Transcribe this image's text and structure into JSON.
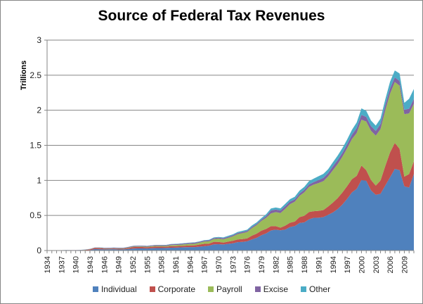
{
  "chart_data": {
    "type": "area",
    "stacked": true,
    "title": "Source of Federal Tax Revenues",
    "ylabel": "Trillions",
    "xlabel": "",
    "ylim": [
      0,
      3
    ],
    "yticks": [
      0,
      0.5,
      1,
      1.5,
      2,
      2.5,
      3
    ],
    "ytick_labels": [
      "0",
      "0.5",
      "1",
      "1.5",
      "2",
      "2.5",
      "3"
    ],
    "x_start": 1934,
    "x_end": 2011,
    "xtick_labels": [
      "1934",
      "1937",
      "1940",
      "1943",
      "1946",
      "1949",
      "1952",
      "1955",
      "1958",
      "1961",
      "1964",
      "1967",
      "1970",
      "1973",
      "1976",
      "1979",
      "1982",
      "1985",
      "1988",
      "1991",
      "1994",
      "1997",
      "2000",
      "2003",
      "2006",
      "2009"
    ],
    "grid": true,
    "legend": "bottom",
    "series": [
      {
        "name": "Individual",
        "color": "#4F81BD",
        "values": [
          0.0004,
          0.0005,
          0.0007,
          0.0011,
          0.0013,
          0.001,
          0.0009,
          0.0013,
          0.0033,
          0.0065,
          0.0197,
          0.0184,
          0.0161,
          0.0179,
          0.0193,
          0.0156,
          0.0158,
          0.0216,
          0.0279,
          0.0298,
          0.0295,
          0.0287,
          0.0322,
          0.0356,
          0.0347,
          0.0367,
          0.0407,
          0.0413,
          0.0456,
          0.0476,
          0.0487,
          0.0488,
          0.0554,
          0.0615,
          0.0687,
          0.0872,
          0.0904,
          0.0862,
          0.0947,
          0.1032,
          0.119,
          0.1224,
          0.1316,
          0.1576,
          0.181,
          0.2178,
          0.2441,
          0.2859,
          0.2977,
          0.2889,
          0.2984,
          0.3345,
          0.349,
          0.3926,
          0.4012,
          0.4457,
          0.4669,
          0.4678,
          0.476,
          0.5097,
          0.5431,
          0.5902,
          0.6564,
          0.7375,
          0.8286,
          0.8795,
          1.0045,
          0.9943,
          0.8583,
          0.7937,
          0.809,
          0.9272,
          1.0439,
          1.1635,
          1.1457,
          0.9153,
          0.8985,
          1.0915
        ]
      },
      {
        "name": "Corporate",
        "color": "#C0504D",
        "values": [
          0.0004,
          0.0006,
          0.0007,
          0.001,
          0.0013,
          0.0011,
          0.0012,
          0.0021,
          0.0047,
          0.0096,
          0.0148,
          0.016,
          0.0119,
          0.0086,
          0.0097,
          0.0112,
          0.0104,
          0.0141,
          0.0212,
          0.0212,
          0.0211,
          0.0179,
          0.0209,
          0.0212,
          0.0201,
          0.0173,
          0.0215,
          0.021,
          0.0205,
          0.0216,
          0.0235,
          0.0255,
          0.0301,
          0.034,
          0.0287,
          0.0367,
          0.0328,
          0.0268,
          0.0322,
          0.0362,
          0.0386,
          0.0406,
          0.0414,
          0.0549,
          0.06,
          0.0657,
          0.0646,
          0.0611,
          0.0492,
          0.037,
          0.0569,
          0.0613,
          0.0631,
          0.0839,
          0.0945,
          0.1033,
          0.0935,
          0.0981,
          0.1003,
          0.1175,
          0.1404,
          0.157,
          0.1718,
          0.1823,
          0.1887,
          0.1847,
          0.2073,
          0.1511,
          0.148,
          0.1318,
          0.1894,
          0.2783,
          0.3539,
          0.3702,
          0.3043,
          0.1382,
          0.1914,
          0.1811
        ]
      },
      {
        "name": "Payroll",
        "color": "#9BBB59",
        "values": [
          3e-05,
          3e-05,
          5e-05,
          0.0006,
          0.0016,
          0.0017,
          0.0018,
          0.0019,
          0.0025,
          0.003,
          0.0035,
          0.0035,
          0.0031,
          0.0034,
          0.0038,
          0.0038,
          0.0043,
          0.0057,
          0.0064,
          0.0068,
          0.0072,
          0.0079,
          0.0093,
          0.01,
          0.0112,
          0.0117,
          0.0147,
          0.0164,
          0.017,
          0.0198,
          0.022,
          0.0222,
          0.0255,
          0.0326,
          0.0339,
          0.039,
          0.0444,
          0.0473,
          0.0526,
          0.0631,
          0.0751,
          0.0845,
          0.0908,
          0.1065,
          0.121,
          0.1389,
          0.1578,
          0.1827,
          0.2015,
          0.209,
          0.2394,
          0.2652,
          0.2839,
          0.3033,
          0.3343,
          0.3594,
          0.38,
          0.396,
          0.4137,
          0.4283,
          0.4615,
          0.4845,
          0.5094,
          0.5394,
          0.5718,
          0.6118,
          0.6529,
          0.694,
          0.7008,
          0.713,
          0.7334,
          0.7941,
          0.8378,
          0.8696,
          0.9002,
          0.8909,
          0.8648,
          0.8188
        ]
      },
      {
        "name": "Excise",
        "color": "#8064A2",
        "values": [
          0.0014,
          0.0014,
          0.0016,
          0.0019,
          0.0019,
          0.0019,
          0.002,
          0.0026,
          0.0034,
          0.0041,
          0.0048,
          0.0063,
          0.0069,
          0.0072,
          0.0074,
          0.0076,
          0.0076,
          0.0086,
          0.0089,
          0.0099,
          0.0099,
          0.0091,
          0.0099,
          0.0105,
          0.0108,
          0.0106,
          0.0117,
          0.0119,
          0.0125,
          0.0132,
          0.0137,
          0.0146,
          0.0131,
          0.0137,
          0.0141,
          0.0152,
          0.0157,
          0.0166,
          0.0155,
          0.0163,
          0.0168,
          0.0166,
          0.017,
          0.0175,
          0.0184,
          0.0187,
          0.0243,
          0.0408,
          0.0363,
          0.0353,
          0.0374,
          0.036,
          0.0329,
          0.0325,
          0.0352,
          0.0344,
          0.0353,
          0.0424,
          0.0456,
          0.0481,
          0.0552,
          0.0575,
          0.054,
          0.0569,
          0.0612,
          0.0704,
          0.0689,
          0.0662,
          0.067,
          0.0675,
          0.0699,
          0.0731,
          0.074,
          0.0651,
          0.0673,
          0.0625,
          0.0669,
          0.0724
        ]
      },
      {
        "name": "Other",
        "color": "#4BACC6",
        "values": [
          0.0008,
          0.0008,
          0.0009,
          0.0009,
          0.0009,
          0.0009,
          0.0008,
          0.0009,
          0.001,
          0.001,
          0.0012,
          0.0015,
          0.0018,
          0.0021,
          0.0019,
          0.0019,
          0.0019,
          0.0019,
          0.002,
          0.0022,
          0.0025,
          0.0026,
          0.0028,
          0.003,
          0.0032,
          0.0034,
          0.0041,
          0.0042,
          0.0044,
          0.0049,
          0.0055,
          0.006,
          0.0062,
          0.0066,
          0.0074,
          0.0082,
          0.0095,
          0.0102,
          0.014,
          0.0115,
          0.0149,
          0.0174,
          0.0169,
          0.0215,
          0.0212,
          0.0213,
          0.027,
          0.0292,
          0.0289,
          0.0303,
          0.034,
          0.036,
          0.038,
          0.042,
          0.043,
          0.048,
          0.05,
          0.055,
          0.057,
          0.055,
          0.058,
          0.064,
          0.07,
          0.068,
          0.07,
          0.08,
          0.093,
          0.086,
          0.08,
          0.075,
          0.079,
          0.082,
          0.097,
          0.099,
          0.107,
          0.099,
          0.142,
          0.14
        ]
      }
    ]
  }
}
